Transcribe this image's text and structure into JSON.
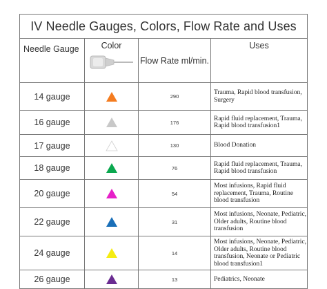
{
  "title": "IV Needle Gauges, Colors, Flow Rate and Uses",
  "headers": {
    "gauge": "Needle Gauge",
    "color": "Color",
    "flow": "Flow Rate ml/min.",
    "uses": "Uses"
  },
  "rows": [
    {
      "gauge": "14 gauge",
      "color_name": "orange",
      "color": "#f47c20",
      "flow": "290",
      "uses": "Trauma, Rapid blood transfusion, Surgery"
    },
    {
      "gauge": "16 gauge",
      "color_name": "gray",
      "color": "#c8c8c8",
      "flow": "176",
      "uses": "Rapid fluid replacement, Trauma, Rapid blood transfusion1"
    },
    {
      "gauge": "17 gauge",
      "color_name": "white",
      "color": "#ffffff",
      "flow": "130",
      "uses": "Blood Donation"
    },
    {
      "gauge": "18 gauge",
      "color_name": "green",
      "color": "#0aa84f",
      "flow": "76",
      "uses": "Rapid fluid replacement, Trauma, Rapid blood transfusion"
    },
    {
      "gauge": "20 gauge",
      "color_name": "pink",
      "color": "#e620c8",
      "flow": "54",
      "uses": "Most infusions, Rapid fluid replacement, Trauma, Routine blood transfusion"
    },
    {
      "gauge": "22 gauge",
      "color_name": "blue",
      "color": "#1a6fb8",
      "flow": "31",
      "uses": "Most infusions, Neonate, Pediatric, Older adults, Routine blood transfusion"
    },
    {
      "gauge": "24 gauge",
      "color_name": "yellow",
      "color": "#f5ec12",
      "flow": "14",
      "uses": "Most infusions, Neonate, Pediatric, Older adults, Routine blood transfusion, Neonate or Pediatric blood transfusion1"
    },
    {
      "gauge": "26 gauge",
      "color_name": "violet",
      "color": "#6a2c91",
      "flow": "13",
      "uses": "Pediatrics, Neonate"
    }
  ]
}
